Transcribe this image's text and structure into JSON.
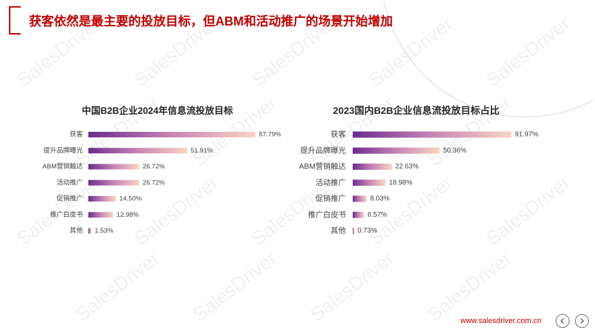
{
  "slide": {
    "title": "获客依然是最主要的投放目标，但ABM和活动推广的场景开始增加",
    "website": "www.salesdriver.com.cn",
    "watermark": "SalesDriver",
    "accent_color": "#c00000",
    "nav": {
      "prev_icon": "chevron-left-icon",
      "next_icon": "chevron-right-icon"
    }
  },
  "chart_data": [
    {
      "type": "bar",
      "orientation": "horizontal",
      "title": "中国B2B企业2024年信息流投放目标",
      "categories": [
        "获客",
        "提升品牌曝光",
        "ABM营销触达",
        "活动推广",
        "促销推广",
        "推广白皮书",
        "其他"
      ],
      "values": [
        87.79,
        51.91,
        26.72,
        26.72,
        14.5,
        12.98,
        1.53
      ],
      "data_labels": [
        "87.79%",
        "51.91%",
        "26.72%",
        "26.72%",
        "14.50%",
        "12.98%",
        "1.53%"
      ],
      "grid": false,
      "legend": "none",
      "bar_gradient": [
        "#6b2c8f",
        "#c784b4",
        "#f8d5c4"
      ]
    },
    {
      "type": "bar",
      "orientation": "horizontal",
      "title": "2023国内B2B企业信息流投放目标占比",
      "categories": [
        "获客",
        "提升品牌曝光",
        "ABM营销触达",
        "活动推广",
        "促销推广",
        "推广白皮书",
        "其他"
      ],
      "values": [
        91.97,
        50.36,
        22.63,
        18.98,
        8.03,
        6.57,
        0.73
      ],
      "data_labels": [
        "91.97%",
        "50.36%",
        "22.63%",
        "18.98%",
        "8.03%",
        "6.57%",
        "0.73%"
      ],
      "grid": false,
      "legend": "none",
      "bar_gradient": [
        "#6b2c8f",
        "#c784b4",
        "#f8d5c4"
      ]
    }
  ]
}
